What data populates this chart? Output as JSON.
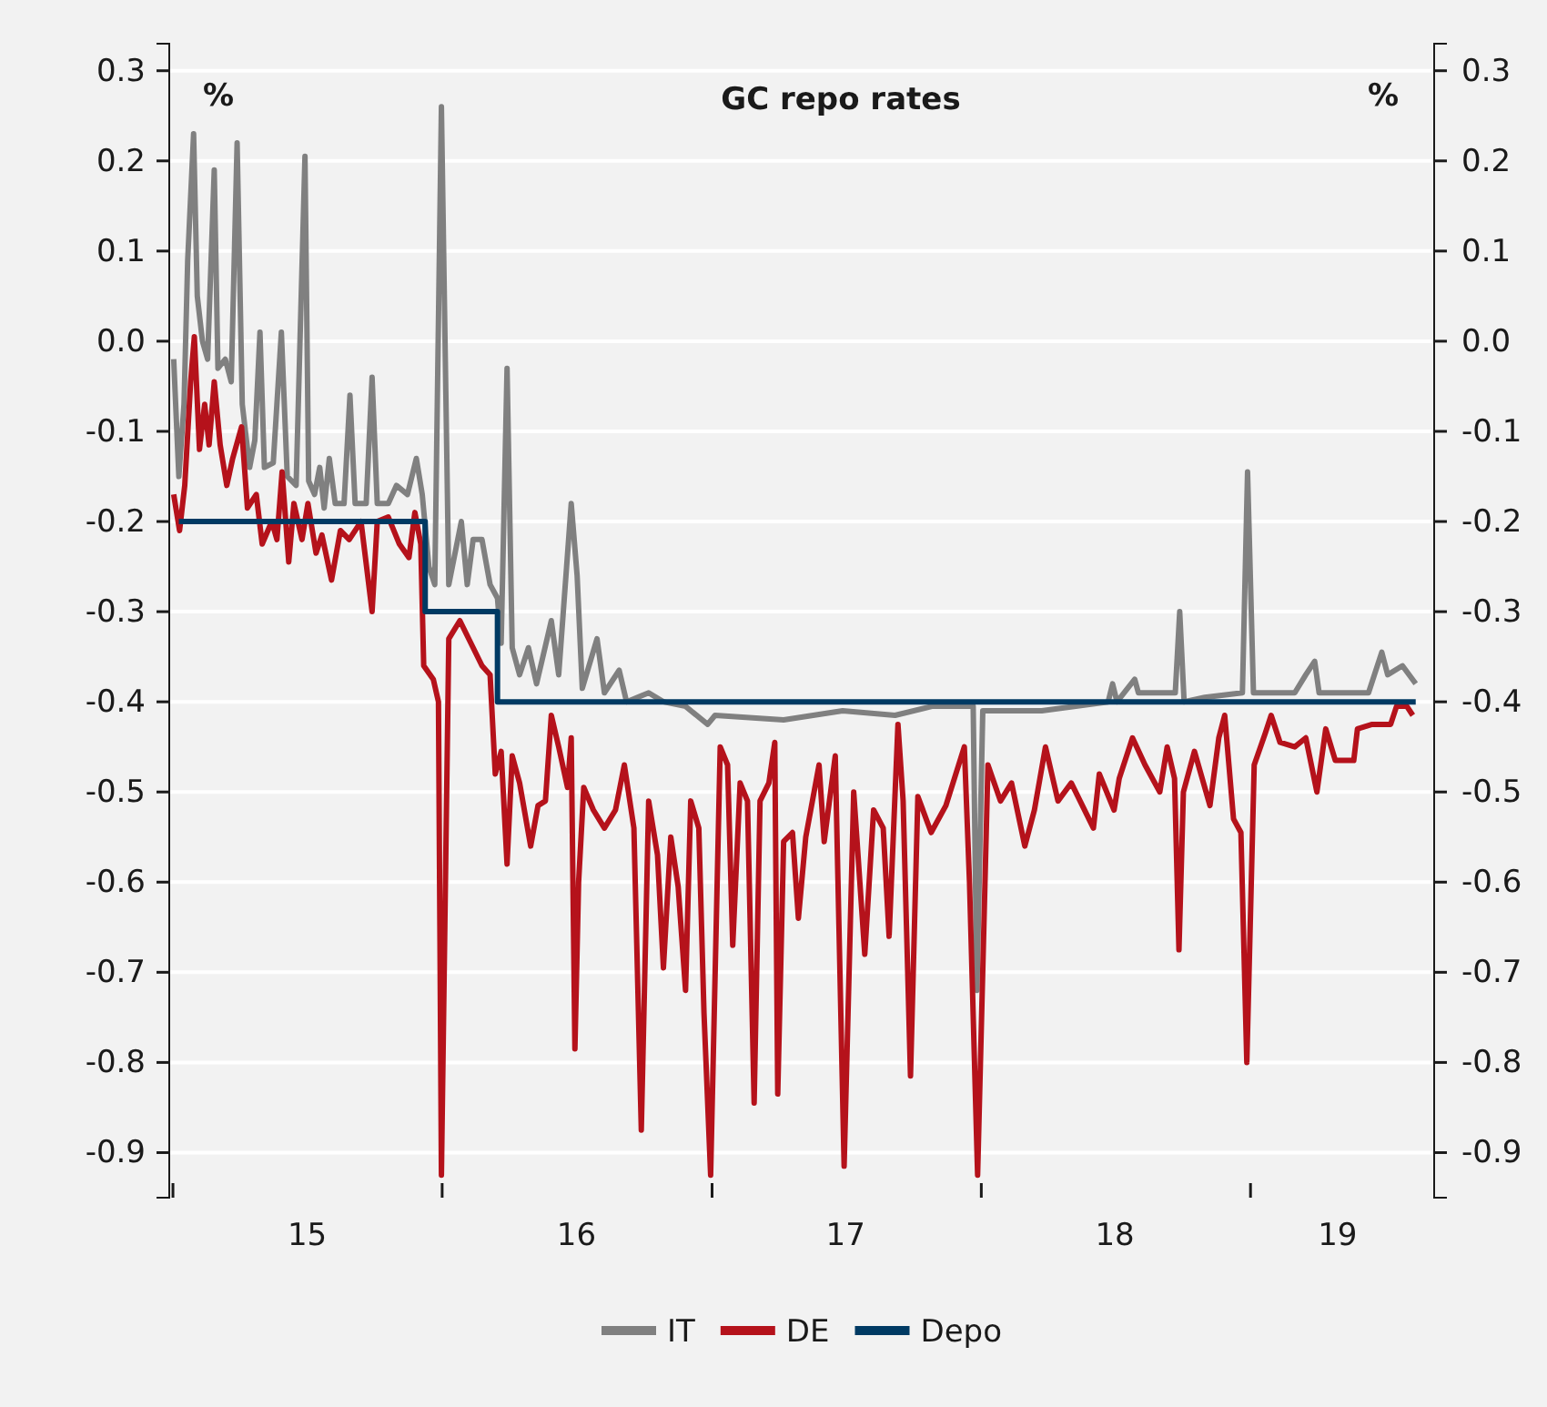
{
  "chart_data": {
    "type": "line",
    "title": "GC repo rates",
    "annotations": [
      "%",
      "%"
    ],
    "xlim": [
      "2014-12-27",
      "2019-09-07"
    ],
    "xticks": [
      {
        "value": "2015-01-01",
        "label": null
      },
      {
        "value": "2015-07-02",
        "label": "15"
      },
      {
        "value": "2016-01-01",
        "label": null
      },
      {
        "value": "2016-07-01",
        "label": "16"
      },
      {
        "value": "2017-01-01",
        "label": null
      },
      {
        "value": "2017-07-01",
        "label": "17"
      },
      {
        "value": "2018-01-01",
        "label": null
      },
      {
        "value": "2018-07-01",
        "label": "18"
      },
      {
        "value": "2019-01-01",
        "label": null
      },
      {
        "value": "2019-04-29",
        "label": "19"
      }
    ],
    "ylim": [
      -0.95,
      0.33
    ],
    "yticks": [
      0.3,
      0.2,
      0.1,
      {
        "value": 0,
        "label": "0.0"
      },
      -0.1,
      -0.2,
      -0.3,
      -0.4,
      -0.5,
      -0.6,
      -0.7,
      -0.8,
      -0.9
    ],
    "y2lim": [
      -0.95,
      0.33
    ],
    "y2ticks": [
      0.3,
      0.2,
      0.1,
      {
        "value": 0,
        "label": "0.0"
      },
      -0.1,
      -0.2,
      -0.3,
      -0.4,
      -0.5,
      -0.6,
      -0.7,
      -0.8,
      -0.9
    ],
    "grid": "y",
    "legend": "bottom",
    "series": [
      {
        "name": "IT",
        "color": "#808080",
        "x": [
          "2015-01-02",
          "2015-01-09",
          "2015-01-16",
          "2015-01-21",
          "2015-01-29",
          "2015-02-03",
          "2015-02-10",
          "2015-02-17",
          "2015-02-26",
          "2015-03-03",
          "2015-03-13",
          "2015-03-21",
          "2015-03-29",
          "2015-04-05",
          "2015-04-15",
          "2015-04-22",
          "2015-04-29",
          "2015-05-05",
          "2015-05-17",
          "2015-05-28",
          "2015-06-05",
          "2015-06-17",
          "2015-06-29",
          "2015-07-04",
          "2015-07-12",
          "2015-07-19",
          "2015-07-25",
          "2015-08-01",
          "2015-08-09",
          "2015-08-21",
          "2015-08-29",
          "2015-09-05",
          "2015-09-20",
          "2015-09-28",
          "2015-10-05",
          "2015-10-20",
          "2015-10-31",
          "2015-11-15",
          "2015-11-27",
          "2015-12-05",
          "2015-12-14",
          "2015-12-22",
          "2015-12-31",
          "2016-01-10",
          "2016-01-27",
          "2016-02-04",
          "2016-02-12",
          "2016-02-24",
          "2016-03-06",
          "2016-03-16",
          "2016-03-21",
          "2016-03-29",
          "2016-04-05",
          "2016-04-15",
          "2016-04-27",
          "2016-05-08",
          "2016-05-28",
          "2016-06-07",
          "2016-06-24",
          "2016-07-02",
          "2016-07-09",
          "2016-07-29",
          "2016-08-08",
          "2016-08-28",
          "2016-09-07",
          "2016-10-07",
          "2016-10-27",
          "2016-11-26",
          "2016-12-26",
          "2017-01-05",
          "2017-04-08",
          "2017-06-27",
          "2017-09-06",
          "2017-10-26",
          "2017-12-21",
          "2017-12-26",
          "2018-01-03",
          "2018-03-24",
          "2018-06-22",
          "2018-06-28",
          "2018-07-04",
          "2018-07-28",
          "2018-08-02",
          "2018-09-21",
          "2018-09-27",
          "2018-10-03",
          "2018-10-31",
          "2018-12-21",
          "2018-12-28",
          "2019-01-05",
          "2019-03-02",
          "2019-03-17",
          "2019-03-29",
          "2019-04-04",
          "2019-06-10",
          "2019-06-28",
          "2019-07-06",
          "2019-07-26",
          "2019-08-13"
        ],
        "values": [
          -0.02,
          -0.15,
          -0.07,
          0.09,
          0.23,
          0.05,
          0.0,
          -0.02,
          0.19,
          -0.03,
          -0.02,
          -0.045,
          0.22,
          -0.07,
          -0.14,
          -0.11,
          0.01,
          -0.14,
          -0.135,
          0.01,
          -0.15,
          -0.16,
          0.205,
          -0.155,
          -0.17,
          -0.14,
          -0.185,
          -0.13,
          -0.18,
          -0.18,
          -0.06,
          -0.18,
          -0.18,
          -0.04,
          -0.18,
          -0.18,
          -0.16,
          -0.17,
          -0.13,
          -0.17,
          -0.25,
          -0.27,
          0.26,
          -0.27,
          -0.2,
          -0.27,
          -0.22,
          -0.22,
          -0.27,
          -0.285,
          -0.335,
          -0.03,
          -0.34,
          -0.37,
          -0.34,
          -0.38,
          -0.31,
          -0.37,
          -0.18,
          -0.26,
          -0.385,
          -0.33,
          -0.39,
          -0.365,
          -0.4,
          -0.39,
          -0.4,
          -0.405,
          -0.425,
          -0.415,
          -0.42,
          -0.41,
          -0.415,
          -0.405,
          -0.405,
          -0.72,
          -0.41,
          -0.41,
          -0.4,
          -0.38,
          -0.4,
          -0.375,
          -0.39,
          -0.39,
          -0.3,
          -0.4,
          -0.395,
          -0.39,
          -0.145,
          -0.39,
          -0.39,
          -0.37,
          -0.355,
          -0.39,
          -0.39,
          -0.345,
          -0.37,
          -0.36,
          -0.38
        ]
      },
      {
        "name": "DE",
        "color": "#b5121b",
        "x": [
          "2015-01-02",
          "2015-01-10",
          "2015-01-17",
          "2015-01-25",
          "2015-01-30",
          "2015-02-06",
          "2015-02-13",
          "2015-02-19",
          "2015-02-26",
          "2015-03-06",
          "2015-03-15",
          "2015-03-23",
          "2015-04-04",
          "2015-04-12",
          "2015-04-24",
          "2015-05-02",
          "2015-05-15",
          "2015-05-22",
          "2015-05-29",
          "2015-06-07",
          "2015-06-14",
          "2015-06-25",
          "2015-07-03",
          "2015-07-14",
          "2015-07-22",
          "2015-08-04",
          "2015-08-16",
          "2015-08-28",
          "2015-09-13",
          "2015-09-28",
          "2015-10-05",
          "2015-10-20",
          "2015-11-04",
          "2015-11-17",
          "2015-11-25",
          "2015-12-03",
          "2015-12-07",
          "2015-12-20",
          "2015-12-27",
          "2015-12-31",
          "2016-01-10",
          "2016-01-25",
          "2016-02-09",
          "2016-02-24",
          "2016-03-06",
          "2016-03-13",
          "2016-03-21",
          "2016-03-29",
          "2016-04-05",
          "2016-04-15",
          "2016-04-30",
          "2016-05-10",
          "2016-05-20",
          "2016-05-28",
          "2016-06-07",
          "2016-06-19",
          "2016-06-24",
          "2016-06-29",
          "2016-07-04",
          "2016-07-11",
          "2016-07-24",
          "2016-08-08",
          "2016-08-23",
          "2016-09-04",
          "2016-09-17",
          "2016-09-27",
          "2016-10-07",
          "2016-10-19",
          "2016-10-27",
          "2016-11-06",
          "2016-11-16",
          "2016-11-26",
          "2016-12-03",
          "2016-12-14",
          "2016-12-21",
          "2016-12-30",
          "2017-01-12",
          "2017-01-22",
          "2017-01-29",
          "2017-02-08",
          "2017-02-18",
          "2017-02-27",
          "2017-03-07",
          "2017-03-19",
          "2017-03-27",
          "2017-03-31",
          "2017-04-08",
          "2017-04-20",
          "2017-04-28",
          "2017-05-08",
          "2017-05-26",
          "2017-06-02",
          "2017-06-17",
          "2017-06-29",
          "2017-07-12",
          "2017-07-27",
          "2017-08-08",
          "2017-08-21",
          "2017-08-29",
          "2017-09-10",
          "2017-09-17",
          "2017-09-27",
          "2017-10-07",
          "2017-10-25",
          "2017-11-14",
          "2017-12-09",
          "2017-12-16",
          "2017-12-27",
          "2018-01-10",
          "2018-01-27",
          "2018-02-11",
          "2018-03-01",
          "2018-03-14",
          "2018-03-29",
          "2018-04-15",
          "2018-05-03",
          "2018-06-02",
          "2018-06-10",
          "2018-06-30",
          "2018-07-07",
          "2018-07-25",
          "2018-08-11",
          "2018-08-31",
          "2018-09-10",
          "2018-09-20",
          "2018-09-26",
          "2018-10-02",
          "2018-10-17",
          "2018-11-07",
          "2018-11-19",
          "2018-11-27",
          "2018-12-09",
          "2018-12-19",
          "2018-12-27",
          "2019-01-06",
          "2019-01-21",
          "2019-01-29",
          "2019-02-10",
          "2019-03-02",
          "2019-03-17",
          "2019-04-01",
          "2019-04-13",
          "2019-04-26",
          "2019-05-21",
          "2019-05-26",
          "2019-06-15",
          "2019-07-10",
          "2019-07-18",
          "2019-08-01",
          "2019-08-09"
        ],
        "values": [
          -0.17,
          -0.21,
          -0.16,
          -0.045,
          0.005,
          -0.12,
          -0.07,
          -0.115,
          -0.045,
          -0.115,
          -0.16,
          -0.13,
          -0.095,
          -0.185,
          -0.17,
          -0.225,
          -0.2,
          -0.22,
          -0.145,
          -0.245,
          -0.18,
          -0.22,
          -0.18,
          -0.235,
          -0.215,
          -0.265,
          -0.21,
          -0.22,
          -0.2,
          -0.3,
          -0.2,
          -0.195,
          -0.225,
          -0.24,
          -0.19,
          -0.225,
          -0.36,
          -0.375,
          -0.4,
          -0.925,
          -0.33,
          -0.31,
          -0.335,
          -0.36,
          -0.37,
          -0.48,
          -0.455,
          -0.58,
          -0.46,
          -0.49,
          -0.56,
          -0.515,
          -0.51,
          -0.415,
          -0.45,
          -0.495,
          -0.44,
          -0.785,
          -0.6,
          -0.495,
          -0.52,
          -0.54,
          -0.52,
          -0.47,
          -0.54,
          -0.875,
          -0.51,
          -0.57,
          -0.695,
          -0.55,
          -0.605,
          -0.72,
          -0.51,
          -0.54,
          -0.745,
          -0.925,
          -0.45,
          -0.47,
          -0.67,
          -0.49,
          -0.51,
          -0.845,
          -0.51,
          -0.49,
          -0.445,
          -0.835,
          -0.555,
          -0.545,
          -0.64,
          -0.55,
          -0.47,
          -0.555,
          -0.46,
          -0.915,
          -0.5,
          -0.68,
          -0.52,
          -0.54,
          -0.66,
          -0.425,
          -0.51,
          -0.815,
          -0.505,
          -0.545,
          -0.515,
          -0.45,
          -0.6,
          -0.925,
          -0.47,
          -0.51,
          -0.49,
          -0.56,
          -0.52,
          -0.45,
          -0.51,
          -0.49,
          -0.54,
          -0.48,
          -0.52,
          -0.485,
          -0.44,
          -0.47,
          -0.5,
          -0.45,
          -0.485,
          -0.675,
          -0.5,
          -0.455,
          -0.515,
          -0.44,
          -0.415,
          -0.53,
          -0.545,
          -0.8,
          -0.47,
          -0.435,
          -0.415,
          -0.445,
          -0.45,
          -0.44,
          -0.5,
          -0.43,
          -0.465,
          -0.465,
          -0.43,
          -0.425,
          -0.425,
          -0.405,
          -0.405,
          -0.415
        ]
      },
      {
        "name": "Depo",
        "color": "#003a63",
        "type": "step",
        "x": [
          "2015-01-09",
          "2015-12-09",
          "2016-03-16",
          "2019-08-13"
        ],
        "values": [
          -0.2,
          -0.3,
          -0.4,
          -0.4
        ]
      }
    ]
  }
}
